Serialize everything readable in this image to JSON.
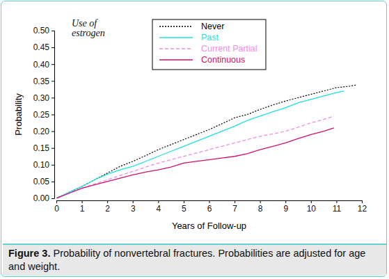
{
  "chart_data": {
    "type": "line",
    "figure_label": "Figure 3.",
    "title": "Probability of nonvertebral fractures. Probabilities are adjusted for age and weight.",
    "x_label": "Years of Follow-up",
    "y_label": "Probability",
    "legend_title": [
      "Use of",
      "estrogen"
    ],
    "legend": "top",
    "xlim": [
      0,
      12
    ],
    "xticks": [
      0,
      1,
      2,
      3,
      4,
      5,
      6,
      7,
      8,
      9,
      10,
      11,
      12
    ],
    "ylim": [
      0,
      0.5
    ],
    "yticks": [
      {
        "value": 0,
        "label": "0.00"
      },
      {
        "value": 0.05,
        "label": "0.05"
      },
      {
        "value": 0.1,
        "label": "0.10"
      },
      {
        "value": 0.15,
        "label": "0.15"
      },
      {
        "value": 0.2,
        "label": "0.20"
      },
      {
        "value": 0.25,
        "label": "0.25"
      },
      {
        "value": 0.3,
        "label": "0.30"
      },
      {
        "value": 0.35,
        "label": "0.35"
      },
      {
        "value": 0.4,
        "label": "0.40"
      },
      {
        "value": 0.45,
        "label": "0.45"
      },
      {
        "value": 0.5,
        "label": "0.50"
      }
    ],
    "series": [
      {
        "name": "Never",
        "color": "#000000",
        "line_style": "dotted",
        "x": [
          0,
          0.5,
          1,
          1.5,
          2,
          2.5,
          3,
          3.5,
          4,
          4.5,
          5,
          5.5,
          6,
          6.5,
          7,
          7.5,
          8,
          8.5,
          9,
          9.5,
          10,
          10.5,
          11,
          11.5,
          11.8
        ],
        "values": [
          0,
          0.018,
          0.035,
          0.055,
          0.075,
          0.095,
          0.11,
          0.127,
          0.145,
          0.16,
          0.175,
          0.19,
          0.205,
          0.222,
          0.24,
          0.25,
          0.265,
          0.278,
          0.29,
          0.3,
          0.31,
          0.32,
          0.33,
          0.334,
          0.338
        ]
      },
      {
        "name": "Past",
        "color": "#1ee0e0",
        "line_style": "solid",
        "x": [
          0,
          0.5,
          1,
          1.5,
          2,
          2.5,
          3,
          3.5,
          4,
          4.5,
          5,
          5.5,
          6,
          6.5,
          7,
          7.5,
          8,
          8.5,
          9,
          9.5,
          10,
          10.5,
          11,
          11.3
        ],
        "values": [
          0,
          0.018,
          0.035,
          0.055,
          0.072,
          0.085,
          0.095,
          0.11,
          0.125,
          0.14,
          0.155,
          0.17,
          0.185,
          0.2,
          0.215,
          0.232,
          0.245,
          0.258,
          0.27,
          0.285,
          0.295,
          0.305,
          0.315,
          0.32
        ]
      },
      {
        "name": "Current Partial",
        "color": "#f08ce6",
        "line_style": "dashed",
        "x": [
          0,
          0.5,
          1,
          1.5,
          2,
          2.5,
          3,
          3.5,
          4,
          4.5,
          5,
          5.5,
          6,
          6.5,
          7,
          7.5,
          8,
          8.5,
          9,
          9.5,
          10,
          10.5,
          10.9
        ],
        "values": [
          0,
          0.015,
          0.03,
          0.043,
          0.055,
          0.068,
          0.08,
          0.093,
          0.105,
          0.115,
          0.125,
          0.135,
          0.145,
          0.155,
          0.165,
          0.175,
          0.185,
          0.192,
          0.2,
          0.212,
          0.225,
          0.235,
          0.245
        ]
      },
      {
        "name": "Continuous",
        "color": "#d0106e",
        "line_style": "solid",
        "x": [
          0,
          0.5,
          1,
          1.5,
          2,
          2.5,
          3,
          3.5,
          4,
          4.5,
          5,
          5.5,
          6,
          6.5,
          7,
          7.5,
          8,
          8.5,
          9,
          9.5,
          10,
          10.5,
          10.9
        ],
        "values": [
          0,
          0.015,
          0.03,
          0.04,
          0.05,
          0.06,
          0.07,
          0.078,
          0.085,
          0.093,
          0.105,
          0.11,
          0.115,
          0.12,
          0.125,
          0.133,
          0.145,
          0.155,
          0.165,
          0.178,
          0.19,
          0.2,
          0.21
        ]
      }
    ]
  }
}
